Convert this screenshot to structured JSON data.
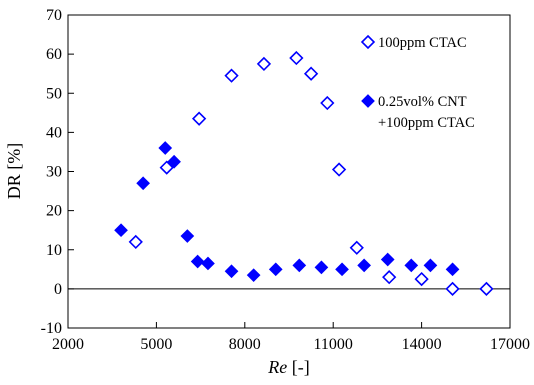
{
  "chart_data": {
    "type": "scatter",
    "xlabel_italic": "Re",
    "xlabel_unit": " [-]",
    "ylabel": "DR [%]",
    "xlim": [
      2000,
      17000
    ],
    "ylim": [
      -10,
      70
    ],
    "xticks": [
      2000,
      5000,
      8000,
      11000,
      14000,
      17000
    ],
    "yticks": [
      -10,
      0,
      10,
      20,
      30,
      40,
      50,
      60,
      70
    ],
    "zero_line": true,
    "grid": false,
    "legend_position": "top-right inside",
    "colors": {
      "marker": "#0000ff",
      "axis": "#000000"
    },
    "series": [
      {
        "name": "100ppm CTAC",
        "marker": "open-diamond",
        "points": [
          [
            4300,
            12
          ],
          [
            5350,
            31
          ],
          [
            6450,
            43.5
          ],
          [
            7550,
            54.5
          ],
          [
            8650,
            57.5
          ],
          [
            9750,
            59
          ],
          [
            10250,
            55
          ],
          [
            10800,
            47.5
          ],
          [
            11200,
            30.5
          ],
          [
            11800,
            10.5
          ],
          [
            12900,
            3
          ],
          [
            14000,
            2.5
          ],
          [
            15050,
            0
          ],
          [
            16200,
            0
          ]
        ]
      },
      {
        "name_lines": [
          "0.25vol% CNT",
          "+100ppm CTAC"
        ],
        "marker": "filled-diamond",
        "points": [
          [
            3800,
            15
          ],
          [
            4550,
            27
          ],
          [
            5300,
            36
          ],
          [
            5600,
            32.5
          ],
          [
            6050,
            13.5
          ],
          [
            6400,
            7
          ],
          [
            6750,
            6.5
          ],
          [
            7550,
            4.5
          ],
          [
            8300,
            3.5
          ],
          [
            9050,
            5
          ],
          [
            9850,
            6
          ],
          [
            10600,
            5.5
          ],
          [
            11300,
            5
          ],
          [
            12050,
            6
          ],
          [
            12850,
            7.5
          ],
          [
            13650,
            6
          ],
          [
            14300,
            6
          ],
          [
            15050,
            5
          ]
        ]
      }
    ]
  }
}
